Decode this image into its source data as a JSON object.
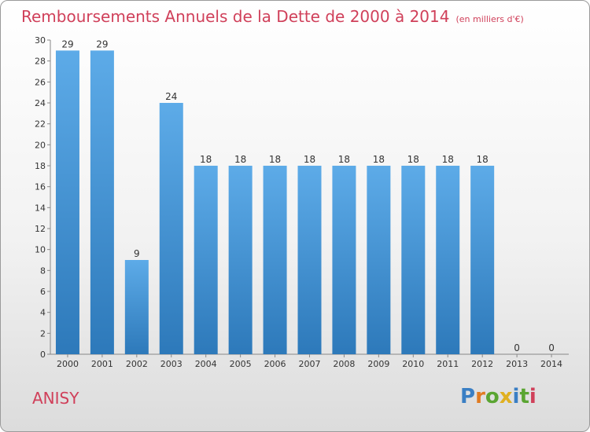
{
  "chart_data": {
    "type": "bar",
    "title": "Remboursements Annuels de la Dette de 2000 à 2014",
    "unit_note": "(en milliers d'€)",
    "xlabel": "",
    "ylabel": "",
    "categories": [
      "2000",
      "2001",
      "2002",
      "2003",
      "2004",
      "2005",
      "2006",
      "2007",
      "2008",
      "2009",
      "2010",
      "2011",
      "2012",
      "2013",
      "2014"
    ],
    "values": [
      29,
      29,
      9,
      24,
      18,
      18,
      18,
      18,
      18,
      18,
      18,
      18,
      18,
      0,
      0
    ],
    "ylim": [
      0,
      30
    ],
    "yticks": [
      0,
      2,
      4,
      6,
      8,
      10,
      12,
      14,
      16,
      18,
      20,
      22,
      24,
      26,
      28,
      30
    ],
    "grid": false,
    "bar_color_top": "#5dabe8",
    "bar_color_bottom": "#2d79ba"
  },
  "commune": "ANISY",
  "logo": {
    "letters": [
      "P",
      "r",
      "o",
      "x",
      "i",
      "t",
      "i"
    ],
    "colors": [
      "#3a7fc4",
      "#e07b22",
      "#5aa532",
      "#e0b020",
      "#3a7fc4",
      "#5aa532",
      "#d0405a"
    ]
  }
}
